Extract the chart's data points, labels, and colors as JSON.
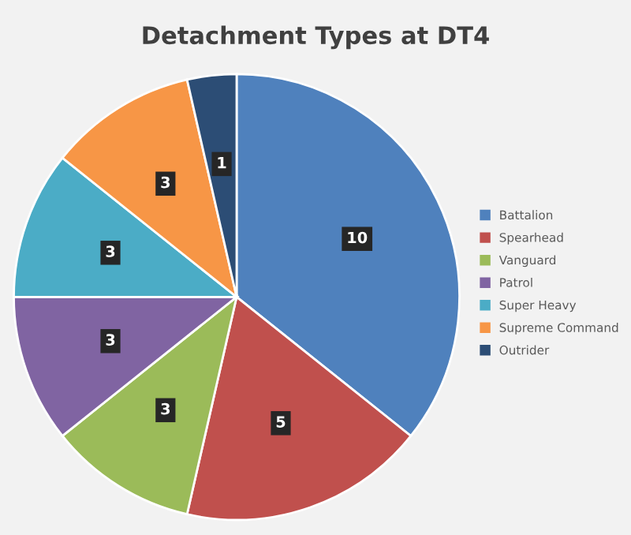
{
  "chart_data": {
    "type": "pie",
    "title": "Detachment Types at DT4",
    "categories": [
      "Battalion",
      "Spearhead",
      "Vanguard",
      "Patrol",
      "Super Heavy",
      "Supreme Command",
      "Outrider"
    ],
    "values": [
      10,
      5,
      3,
      3,
      3,
      3,
      1
    ],
    "colors": [
      "#4f81bd",
      "#c0504d",
      "#9bbb59",
      "#8064a2",
      "#4bacc6",
      "#f79646",
      "#2c4d75"
    ],
    "data_labels": true,
    "legend": "right"
  }
}
